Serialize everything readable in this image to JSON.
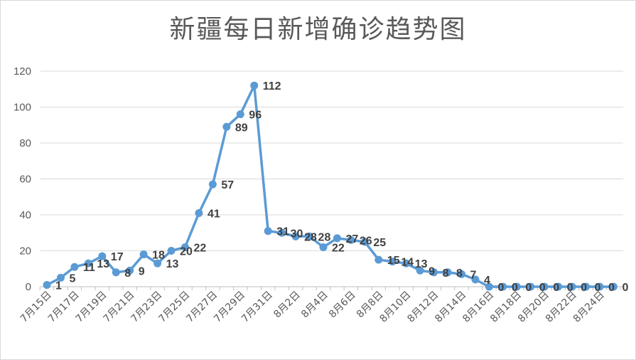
{
  "chart_data": {
    "type": "line",
    "title": "新疆每日新增确诊趋势图",
    "xlabel": "",
    "ylabel": "",
    "ylim": [
      0,
      120
    ],
    "yticks": [
      0,
      20,
      40,
      60,
      80,
      100,
      120
    ],
    "grid": true,
    "legend": "none",
    "series_color": "#5b9bd5",
    "x": [
      "7月15日",
      "7月16日",
      "7月17日",
      "7月18日",
      "7月19日",
      "7月20日",
      "7月21日",
      "7月22日",
      "7月23日",
      "7月24日",
      "7月25日",
      "7月26日",
      "7月27日",
      "7月28日",
      "7月29日",
      "7月30日",
      "7月31日",
      "8月1日",
      "8月2日",
      "8月3日",
      "8月4日",
      "8月5日",
      "8月6日",
      "8月7日",
      "8月8日",
      "8月9日",
      "8月10日",
      "8月11日",
      "8月12日",
      "8月13日",
      "8月14日",
      "8月15日",
      "8月16日",
      "8月17日",
      "8月18日",
      "8月19日",
      "8月20日",
      "8月21日",
      "8月22日",
      "8月23日",
      "8月24日",
      "8月25日"
    ],
    "x_tick_labels": [
      "7月15日",
      "7月17日",
      "7月19日",
      "7月21日",
      "7月23日",
      "7月25日",
      "7月27日",
      "7月29日",
      "7月31日",
      "8月2日",
      "8月4日",
      "8月6日",
      "8月8日",
      "8月10日",
      "8月12日",
      "8月14日",
      "8月16日",
      "8月18日",
      "8月20日",
      "8月22日",
      "8月24日"
    ],
    "series": [
      {
        "values": [
          1,
          5,
          11,
          13,
          17,
          8,
          9,
          18,
          13,
          20,
          22,
          41,
          57,
          89,
          96,
          112,
          31,
          30,
          28,
          28,
          22,
          27,
          26,
          25,
          15,
          14,
          13,
          9,
          8,
          8,
          7,
          4,
          0,
          0,
          0,
          0,
          0,
          0,
          0,
          0,
          0,
          0
        ],
        "data_labels": [
          "1",
          "5",
          "11",
          "13",
          "17",
          "8",
          "9",
          "18",
          "13",
          "20",
          "22",
          "41",
          "57",
          "89",
          "96",
          "112",
          "31",
          "30",
          "28",
          "28",
          "22",
          "27",
          "26",
          "25",
          "15",
          "14",
          "13",
          "9",
          "8",
          "8",
          "7",
          "4",
          "0",
          "0",
          "0",
          "0",
          "0",
          "0",
          "0",
          "0",
          "0",
          "0"
        ]
      }
    ]
  }
}
